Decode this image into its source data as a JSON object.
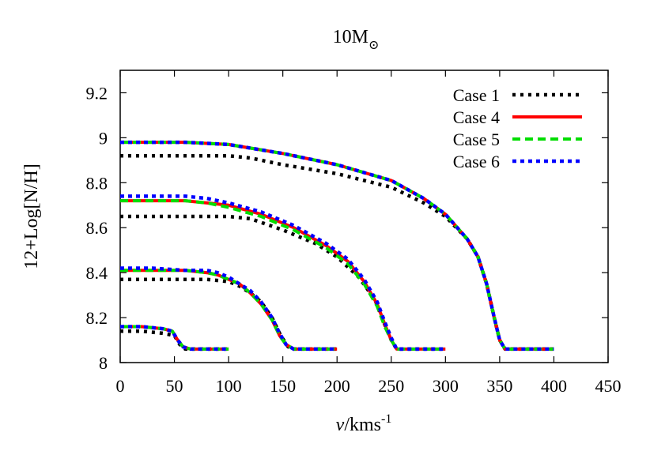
{
  "chart_data": {
    "type": "line",
    "title": "10M",
    "title_subscript": "⊙",
    "xlabel_italic": "v",
    "xlabel_rest": "/kms",
    "xlabel_superscript": "-1",
    "ylabel": "12+Log[N/H]",
    "xlim": [
      0,
      450
    ],
    "ylim": [
      8,
      9.3
    ],
    "xticks": [
      0,
      50,
      100,
      150,
      200,
      250,
      300,
      350,
      400,
      450
    ],
    "xtick_labels": [
      "0",
      "50",
      "100",
      "150",
      "200",
      "250",
      "300",
      "350",
      "400",
      "450"
    ],
    "yticks": [
      8,
      8.2,
      8.4,
      8.6,
      8.8,
      9,
      9.2
    ],
    "ytick_labels": [
      "8",
      "8.2",
      "8.4",
      "8.6",
      "8.8",
      "9",
      "9.2"
    ],
    "grid": false,
    "legend_position": "top-right",
    "series": [
      {
        "name": "Case 1",
        "color": "#000000",
        "dash": "dotted",
        "curves": [
          [
            [
              0,
              8.92
            ],
            [
              20,
              8.92
            ],
            [
              60,
              8.92
            ],
            [
              100,
              8.92
            ],
            [
              120,
              8.91
            ],
            [
              150,
              8.88
            ],
            [
              200,
              8.84
            ],
            [
              250,
              8.78
            ],
            [
              280,
              8.71
            ],
            [
              300,
              8.65
            ],
            [
              320,
              8.55
            ],
            [
              330,
              8.47
            ],
            [
              338,
              8.35
            ],
            [
              345,
              8.2
            ],
            [
              350,
              8.1
            ],
            [
              355,
              8.06
            ],
            [
              400,
              8.06
            ]
          ],
          [
            [
              0,
              8.65
            ],
            [
              20,
              8.65
            ],
            [
              60,
              8.65
            ],
            [
              100,
              8.65
            ],
            [
              120,
              8.64
            ],
            [
              150,
              8.59
            ],
            [
              180,
              8.53
            ],
            [
              200,
              8.47
            ],
            [
              220,
              8.38
            ],
            [
              235,
              8.28
            ],
            [
              243,
              8.18
            ],
            [
              250,
              8.1
            ],
            [
              255,
              8.06
            ],
            [
              300,
              8.06
            ]
          ],
          [
            [
              0,
              8.37
            ],
            [
              30,
              8.37
            ],
            [
              60,
              8.37
            ],
            [
              80,
              8.37
            ],
            [
              100,
              8.36
            ],
            [
              110,
              8.34
            ],
            [
              120,
              8.31
            ],
            [
              130,
              8.27
            ],
            [
              140,
              8.2
            ],
            [
              148,
              8.12
            ],
            [
              155,
              8.07
            ],
            [
              160,
              8.06
            ],
            [
              200,
              8.06
            ]
          ],
          [
            [
              0,
              8.14
            ],
            [
              20,
              8.14
            ],
            [
              40,
              8.13
            ],
            [
              50,
              8.12
            ],
            [
              55,
              8.08
            ],
            [
              60,
              8.06
            ],
            [
              100,
              8.06
            ]
          ]
        ]
      },
      {
        "name": "Case 4",
        "color": "#ff0000",
        "dash": "solid",
        "curves": [
          [
            [
              0,
              8.98
            ],
            [
              30,
              8.98
            ],
            [
              60,
              8.98
            ],
            [
              100,
              8.97
            ],
            [
              150,
              8.93
            ],
            [
              200,
              8.88
            ],
            [
              250,
              8.81
            ],
            [
              280,
              8.73
            ],
            [
              300,
              8.66
            ],
            [
              320,
              8.55
            ],
            [
              330,
              8.47
            ],
            [
              338,
              8.35
            ],
            [
              345,
              8.2
            ],
            [
              350,
              8.1
            ],
            [
              355,
              8.06
            ],
            [
              400,
              8.06
            ]
          ],
          [
            [
              0,
              8.72
            ],
            [
              30,
              8.72
            ],
            [
              60,
              8.72
            ],
            [
              80,
              8.71
            ],
            [
              100,
              8.7
            ],
            [
              130,
              8.66
            ],
            [
              160,
              8.6
            ],
            [
              190,
              8.52
            ],
            [
              210,
              8.45
            ],
            [
              225,
              8.36
            ],
            [
              237,
              8.26
            ],
            [
              244,
              8.17
            ],
            [
              250,
              8.1
            ],
            [
              255,
              8.06
            ],
            [
              300,
              8.06
            ]
          ],
          [
            [
              0,
              8.41
            ],
            [
              30,
              8.41
            ],
            [
              60,
              8.41
            ],
            [
              80,
              8.4
            ],
            [
              90,
              8.39
            ],
            [
              100,
              8.37
            ],
            [
              110,
              8.35
            ],
            [
              120,
              8.31
            ],
            [
              130,
              8.26
            ],
            [
              140,
              8.19
            ],
            [
              147,
              8.12
            ],
            [
              153,
              8.08
            ],
            [
              160,
              8.06
            ],
            [
              200,
              8.06
            ]
          ],
          [
            [
              0,
              8.16
            ],
            [
              20,
              8.16
            ],
            [
              40,
              8.15
            ],
            [
              48,
              8.14
            ],
            [
              53,
              8.1
            ],
            [
              58,
              8.07
            ],
            [
              65,
              8.06
            ],
            [
              100,
              8.06
            ]
          ]
        ]
      },
      {
        "name": "Case 5",
        "color": "#00dd00",
        "dash": "dashed",
        "curves": [
          [
            [
              0,
              8.98
            ],
            [
              30,
              8.98
            ],
            [
              60,
              8.98
            ],
            [
              100,
              8.97
            ],
            [
              150,
              8.93
            ],
            [
              200,
              8.88
            ],
            [
              250,
              8.81
            ],
            [
              280,
              8.73
            ],
            [
              300,
              8.66
            ],
            [
              320,
              8.55
            ],
            [
              330,
              8.47
            ],
            [
              338,
              8.35
            ],
            [
              345,
              8.2
            ],
            [
              350,
              8.1
            ],
            [
              355,
              8.06
            ],
            [
              400,
              8.06
            ]
          ],
          [
            [
              0,
              8.72
            ],
            [
              30,
              8.72
            ],
            [
              60,
              8.72
            ],
            [
              80,
              8.71
            ],
            [
              100,
              8.69
            ],
            [
              130,
              8.65
            ],
            [
              160,
              8.59
            ],
            [
              190,
              8.51
            ],
            [
              210,
              8.44
            ],
            [
              225,
              8.35
            ],
            [
              237,
              8.25
            ],
            [
              244,
              8.16
            ],
            [
              250,
              8.1
            ],
            [
              255,
              8.06
            ],
            [
              300,
              8.06
            ]
          ],
          [
            [
              0,
              8.41
            ],
            [
              30,
              8.41
            ],
            [
              60,
              8.41
            ],
            [
              80,
              8.4
            ],
            [
              90,
              8.39
            ],
            [
              100,
              8.37
            ],
            [
              110,
              8.35
            ],
            [
              120,
              8.31
            ],
            [
              130,
              8.26
            ],
            [
              140,
              8.19
            ],
            [
              147,
              8.12
            ],
            [
              153,
              8.08
            ],
            [
              160,
              8.06
            ],
            [
              200,
              8.06
            ]
          ],
          [
            [
              0,
              8.16
            ],
            [
              20,
              8.16
            ],
            [
              40,
              8.15
            ],
            [
              48,
              8.14
            ],
            [
              53,
              8.1
            ],
            [
              58,
              8.07
            ],
            [
              65,
              8.06
            ],
            [
              100,
              8.06
            ]
          ]
        ]
      },
      {
        "name": "Case 6",
        "color": "#0000ff",
        "dash": "dotted",
        "curves": [
          [
            [
              0,
              8.98
            ],
            [
              30,
              8.98
            ],
            [
              60,
              8.98
            ],
            [
              100,
              8.97
            ],
            [
              150,
              8.93
            ],
            [
              200,
              8.88
            ],
            [
              250,
              8.81
            ],
            [
              280,
              8.73
            ],
            [
              300,
              8.66
            ],
            [
              320,
              8.55
            ],
            [
              330,
              8.47
            ],
            [
              338,
              8.35
            ],
            [
              345,
              8.2
            ],
            [
              350,
              8.1
            ],
            [
              355,
              8.06
            ],
            [
              400,
              8.06
            ]
          ],
          [
            [
              0,
              8.74
            ],
            [
              30,
              8.74
            ],
            [
              60,
              8.74
            ],
            [
              80,
              8.73
            ],
            [
              100,
              8.71
            ],
            [
              130,
              8.67
            ],
            [
              160,
              8.61
            ],
            [
              190,
              8.53
            ],
            [
              210,
              8.46
            ],
            [
              225,
              8.37
            ],
            [
              237,
              8.27
            ],
            [
              244,
              8.18
            ],
            [
              250,
              8.11
            ],
            [
              255,
              8.06
            ],
            [
              300,
              8.06
            ]
          ],
          [
            [
              0,
              8.42
            ],
            [
              30,
              8.42
            ],
            [
              60,
              8.41
            ],
            [
              80,
              8.41
            ],
            [
              90,
              8.4
            ],
            [
              100,
              8.38
            ],
            [
              110,
              8.35
            ],
            [
              120,
              8.32
            ],
            [
              130,
              8.27
            ],
            [
              140,
              8.2
            ],
            [
              147,
              8.13
            ],
            [
              153,
              8.08
            ],
            [
              160,
              8.06
            ],
            [
              200,
              8.06
            ]
          ],
          [
            [
              0,
              8.16
            ],
            [
              20,
              8.16
            ],
            [
              40,
              8.15
            ],
            [
              48,
              8.14
            ],
            [
              53,
              8.1
            ],
            [
              58,
              8.07
            ],
            [
              65,
              8.06
            ],
            [
              100,
              8.06
            ]
          ]
        ]
      }
    ]
  }
}
